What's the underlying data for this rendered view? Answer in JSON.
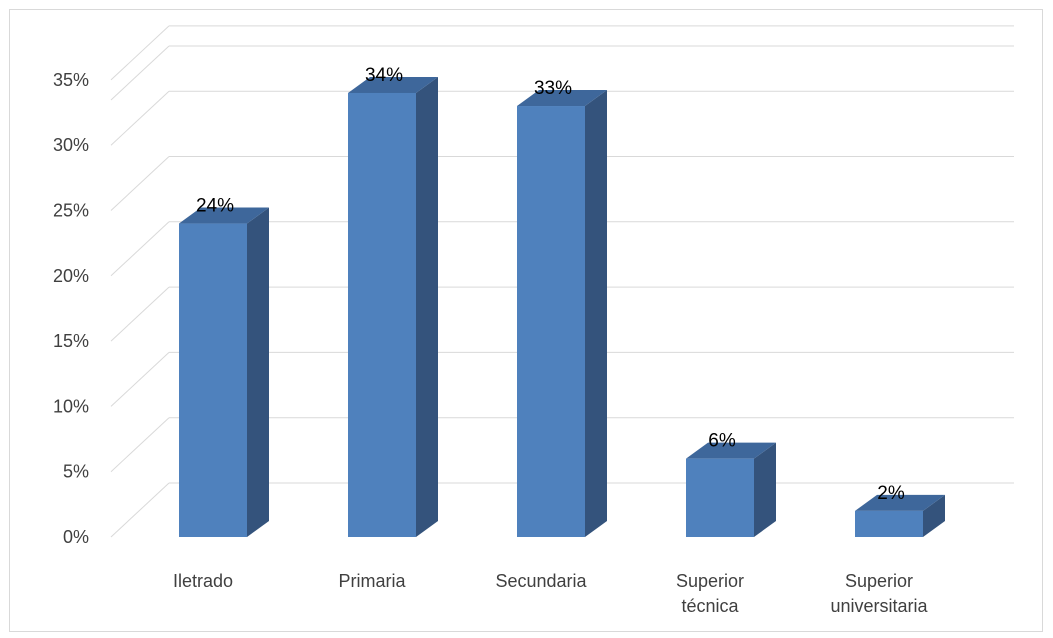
{
  "chart_data": {
    "type": "bar",
    "three_d": true,
    "categories": [
      [
        "Iletrado"
      ],
      [
        "Primaria"
      ],
      [
        "Secundaria"
      ],
      [
        "Superior",
        "técnica"
      ],
      [
        "Superior",
        "universitaria"
      ]
    ],
    "values": [
      24,
      34,
      33,
      6,
      2
    ],
    "data_labels": [
      "24%",
      "34%",
      "33%",
      "6%",
      "2%"
    ],
    "y_ticks": [
      "0%",
      "5%",
      "10%",
      "15%",
      "20%",
      "25%",
      "30%",
      "35%"
    ],
    "ylim": [
      0,
      35
    ],
    "grid": true,
    "legend": "none",
    "colors": {
      "bar_front": "#4f81bd",
      "bar_side": "#34537c",
      "bar_top": "#3e679b",
      "gridline": "#d9d9d9",
      "axis_text": "#404040"
    }
  }
}
